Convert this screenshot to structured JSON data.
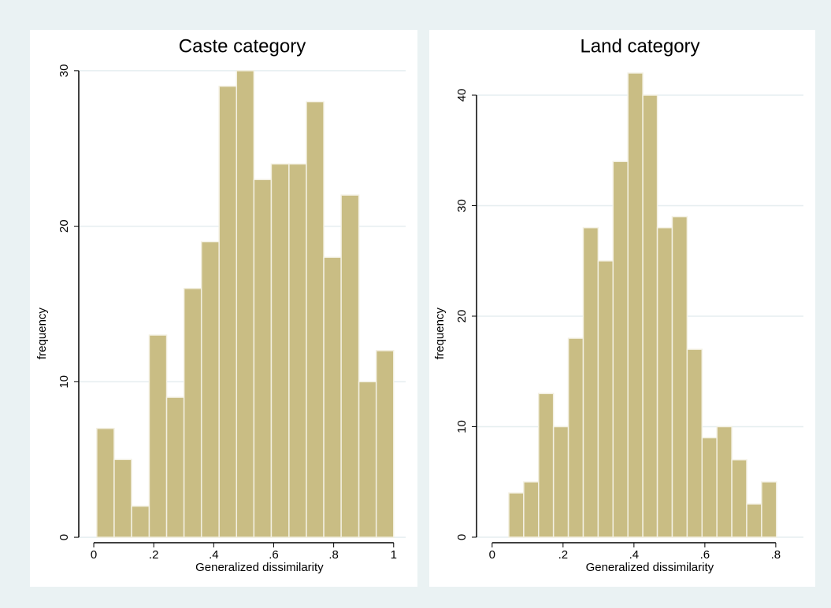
{
  "chart_data": [
    {
      "type": "histogram",
      "title": "Caste category",
      "x_label": "Generalized dissimilarity",
      "y_label": "frequency",
      "bins": [
        0.01,
        0.068,
        0.126,
        0.185,
        0.243,
        0.301,
        0.359,
        0.418,
        0.476,
        0.534,
        0.592,
        0.651,
        0.709,
        0.767,
        0.825,
        0.884,
        0.942,
        1.0
      ],
      "values": [
        7,
        5,
        2,
        13,
        9,
        16,
        19,
        29,
        30,
        23,
        24,
        24,
        28,
        18,
        22,
        10,
        12
      ],
      "color": "#c9bd84",
      "xlim": [
        -0.05,
        1.04
      ],
      "ylim": [
        -0.35,
        30.6
      ],
      "xticks": [
        0,
        {
          "value": 0.2,
          "label": ".2"
        },
        {
          "value": 0.4,
          "label": ".4"
        },
        {
          "value": 0.6,
          "label": ".6"
        },
        {
          "value": 0.8,
          "label": ".8"
        },
        1
      ],
      "yticks": [
        0,
        10,
        20,
        30
      ],
      "grid": true
    },
    {
      "type": "histogram",
      "title": "Land category",
      "x_label": "Generalized dissimilarity",
      "y_label": "frequency",
      "bins": [
        0.047,
        0.089,
        0.131,
        0.173,
        0.215,
        0.257,
        0.299,
        0.341,
        0.383,
        0.425,
        0.466,
        0.508,
        0.55,
        0.592,
        0.634,
        0.676,
        0.718,
        0.76,
        0.802
      ],
      "values": [
        4,
        5,
        13,
        10,
        18,
        28,
        25,
        34,
        42,
        40,
        28,
        29,
        17,
        9,
        10,
        7,
        3,
        5
      ],
      "color": "#c9bd84",
      "xlim": [
        -0.044,
        0.878
      ],
      "ylim": [
        -0.5,
        43.06
      ],
      "xticks": [
        0,
        {
          "value": 0.2,
          "label": ".2"
        },
        {
          "value": 0.4,
          "label": ".4"
        },
        {
          "value": 0.6,
          "label": ".6"
        },
        {
          "value": 0.8,
          "label": ".8"
        }
      ],
      "yticks": [
        0,
        10,
        20,
        30,
        40
      ],
      "grid": true
    }
  ]
}
